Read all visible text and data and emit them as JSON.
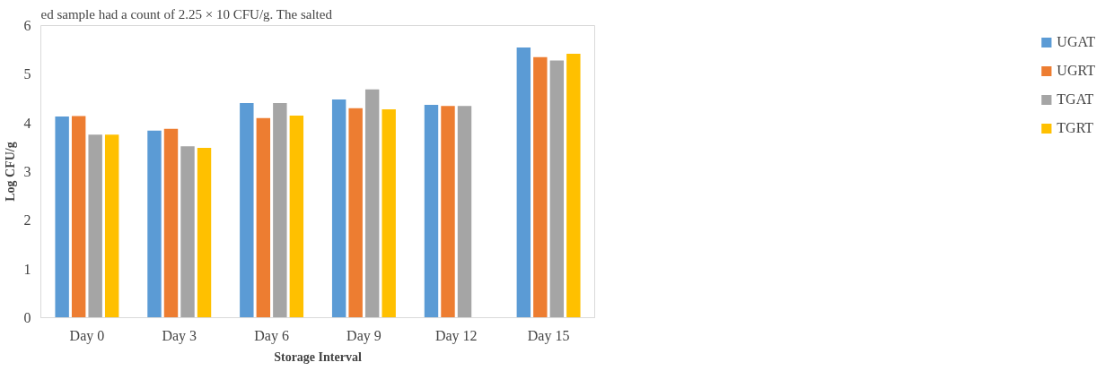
{
  "chart_data": {
    "type": "bar",
    "xlabel": "Storage Interval",
    "ylabel": "Log CFU/g",
    "annotations": [
      "ed sample had a count of 2.25 × 10 CFU/g. The salted"
    ],
    "categories": [
      "Day 0",
      "Day 3",
      "Day 6",
      "Day 9",
      "Day 12",
      "Day 15"
    ],
    "series": [
      {
        "name": "UGAT",
        "color": "#5b9bd5",
        "values": [
          4.13,
          3.84,
          4.41,
          4.48,
          4.37,
          5.55
        ]
      },
      {
        "name": "UGRT",
        "color": "#ed7d31",
        "values": [
          4.14,
          3.88,
          4.1,
          4.3,
          4.35,
          5.35
        ]
      },
      {
        "name": "TGAT",
        "color": "#a5a5a5",
        "values": [
          3.76,
          3.52,
          4.41,
          4.69,
          4.35,
          5.28
        ]
      },
      {
        "name": "TGRT",
        "color": "#ffc000",
        "values": [
          3.76,
          3.49,
          4.15,
          4.28,
          null,
          5.42
        ]
      }
    ],
    "ylim": [
      0,
      6
    ],
    "yticks": [
      0,
      1,
      2,
      3,
      4,
      5,
      6
    ],
    "grid": false,
    "legend": "right"
  }
}
